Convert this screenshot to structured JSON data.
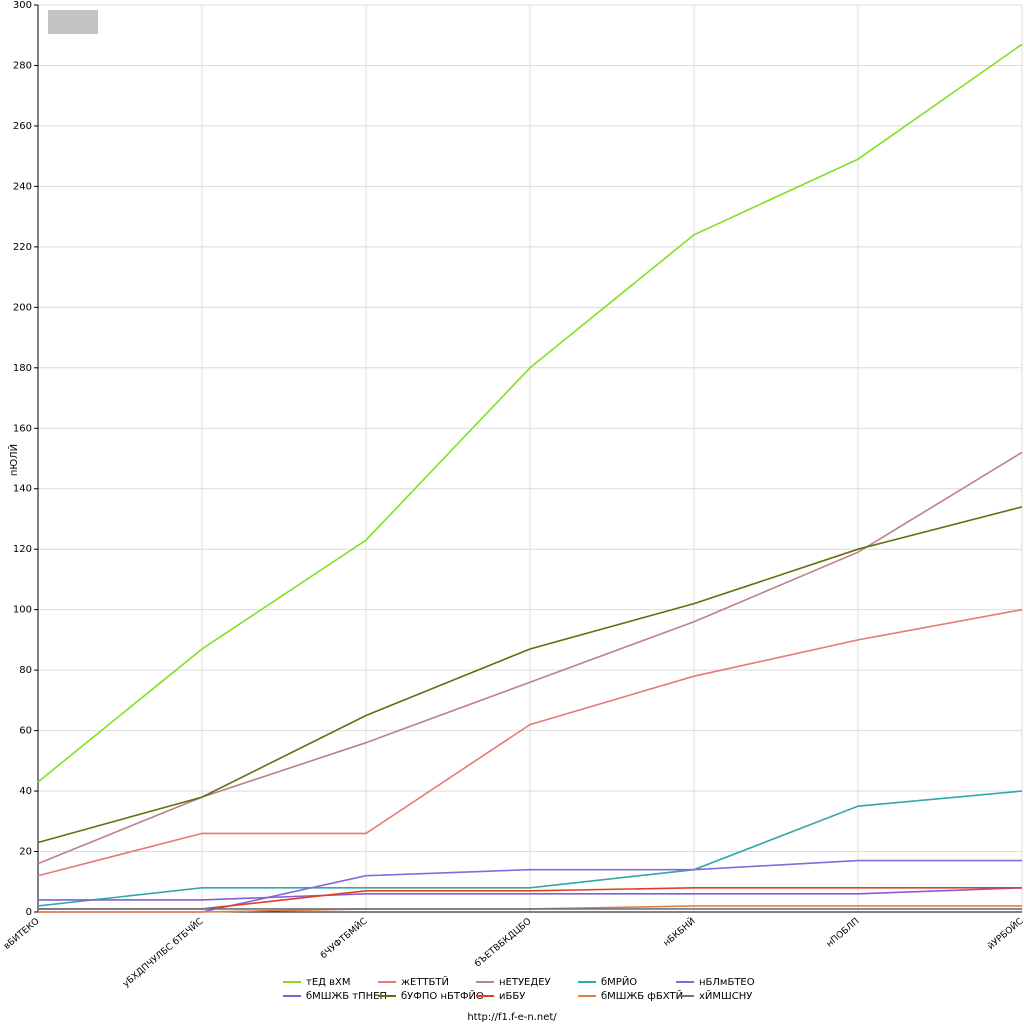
{
  "chart_data": {
    "type": "line",
    "y_label": "пЮЛЙ",
    "footer": "http://f1.f-e-n.net/",
    "categories": [
      "вБИТЕКО",
      "уБХДПЧУЛБС бТБЧЙС",
      "бЧУФТБМЙС",
      "бЪЕТВБКДЦБО",
      "нБКБНЙ",
      "нПОБЛП",
      "йУРБОЙС"
    ],
    "ylim": [
      0,
      300
    ],
    "yticks": [
      0,
      20,
      40,
      60,
      80,
      100,
      120,
      140,
      160,
      180,
      200,
      220,
      240,
      260,
      280,
      300
    ],
    "grid": true,
    "legend": "bottom",
    "series": [
      {
        "name": "тЕД вХМ",
        "color": "#80e020",
        "values": [
          43,
          87,
          123,
          180,
          224,
          249,
          287
        ]
      },
      {
        "name": "жЕТТБТЙ",
        "color": "#e87878",
        "values": [
          12,
          26,
          26,
          62,
          78,
          90,
          100
        ]
      },
      {
        "name": "нЕТУЕДЕУ",
        "color": "#c08088",
        "values": [
          16,
          38,
          56,
          76,
          96,
          119,
          152
        ]
      },
      {
        "name": "бМРЙО",
        "color": "#30a8a8",
        "values": [
          2,
          8,
          8,
          8,
          14,
          35,
          40
        ]
      },
      {
        "name": "нБЛмБТЕО",
        "color": "#8868e0",
        "values": [
          0,
          0,
          12,
          14,
          14,
          17,
          17
        ]
      },
      {
        "name": "бМШЖБ тПНЕП",
        "color": "#8060d8",
        "values": [
          4,
          4,
          6,
          6,
          6,
          6,
          8
        ]
      },
      {
        "name": "бУФПО нБТФЙО",
        "color": "#607010",
        "values": [
          23,
          38,
          65,
          87,
          102,
          120,
          134
        ]
      },
      {
        "name": "иББУ",
        "color": "#e04020",
        "values": [
          1,
          1,
          7,
          7,
          8,
          8,
          8
        ]
      },
      {
        "name": "бМШЖБ фБХТЙ",
        "color": "#e08040",
        "values": [
          0,
          0,
          1,
          1,
          2,
          2,
          2
        ]
      },
      {
        "name": "хЙМШСНУ",
        "color": "#707080",
        "values": [
          1,
          1,
          1,
          1,
          1,
          1,
          1
        ]
      }
    ]
  }
}
